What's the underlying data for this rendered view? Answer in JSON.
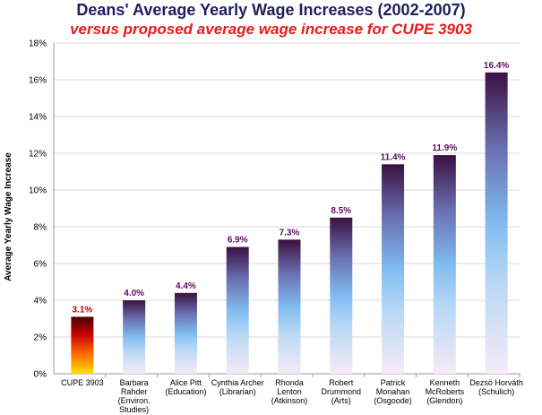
{
  "chart_data": {
    "type": "bar",
    "title": "Deans' Average Yearly Wage Increases (2002-2007)",
    "subtitle": "versus proposed average wage increase for CUPE 3903",
    "ylabel": "Average  Yearly Wage Increase",
    "xlabel": "",
    "ylim": [
      0,
      18
    ],
    "yticks": [
      "0%",
      "2%",
      "4%",
      "6%",
      "8%",
      "10%",
      "12%",
      "14%",
      "16%",
      "18%"
    ],
    "grid": true,
    "legend": "none",
    "categories": [
      "CUPE 3903",
      "Barbara Rahder (Environ. Studies)",
      "Alice Pitt (Education)",
      "Cynthia Archer (Librarian)",
      "Rhonda Lenton (Atkinson)",
      "Robert Drummond (Arts)",
      "Patrick Monahan (Osgoode)",
      "Kenneth McRoberts (Glendon)",
      "Dezsö Horváth (Schulich)"
    ],
    "category_lines": [
      [
        "CUPE 3903"
      ],
      [
        "Barbara",
        "Rahder",
        "(Environ.",
        "Studies)"
      ],
      [
        "Alice Pitt",
        "(Education)"
      ],
      [
        "Cynthia Archer",
        "(Librarian)"
      ],
      [
        "Rhonda",
        "Lenton",
        "(Atkinson)"
      ],
      [
        "Robert",
        "Drummond",
        "(Arts)"
      ],
      [
        "Patrick",
        "Monahan",
        "(Osgoode)"
      ],
      [
        "Kenneth",
        "McRoberts",
        "(Glendon)"
      ],
      [
        "Dezsö Horváth",
        "(Schulich)"
      ]
    ],
    "values": [
      3.1,
      4.0,
      4.4,
      6.9,
      7.3,
      8.5,
      11.4,
      11.9,
      16.4
    ],
    "value_labels": [
      "3.1%",
      "4.0%",
      "4.4%",
      "6.9%",
      "7.3%",
      "8.5%",
      "11.4%",
      "11.9%",
      "16.4%"
    ],
    "colors": {
      "highlight_bar": [
        "#ffe000",
        "#ff6a00",
        "#c40000",
        "#4a0000"
      ],
      "dean_bar": [
        "#f7eaf7",
        "#b9d9f5",
        "#7fbcf0",
        "#6a6fb0",
        "#3a1140"
      ],
      "highlight_label": "#c00000",
      "dean_label": "#5a1060",
      "grid": "#d9d9d9"
    }
  }
}
